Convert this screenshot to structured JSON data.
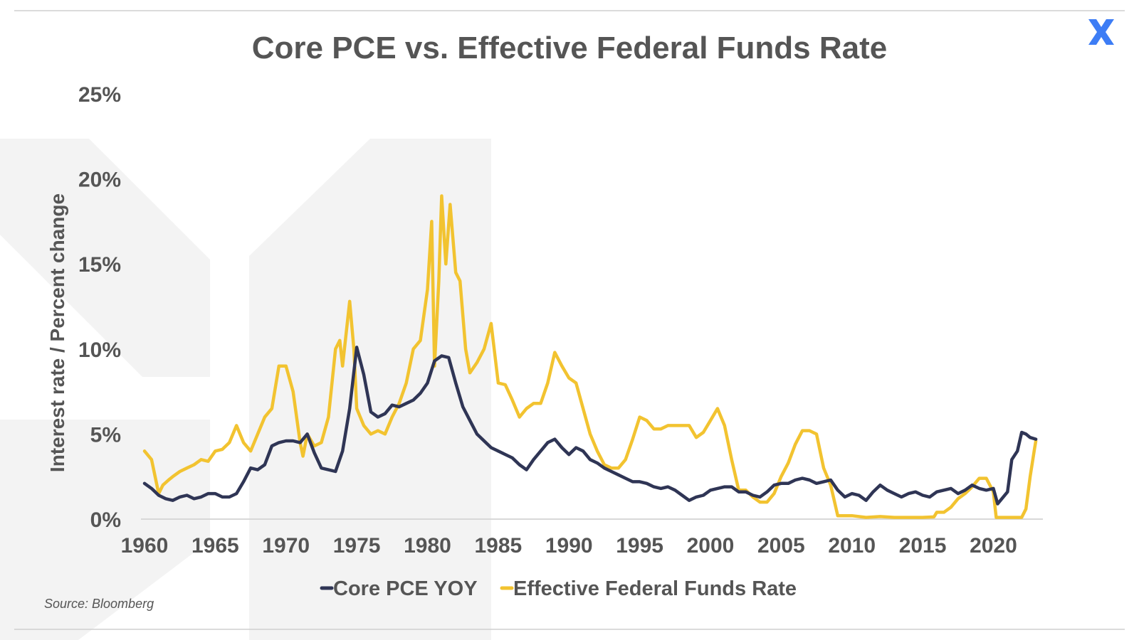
{
  "chart_data": {
    "type": "line",
    "title": "Core PCE vs. Effective Federal Funds Rate",
    "ylabel": "Interest rate / Percent change",
    "xlabel": "",
    "source": "Source: Bloomberg",
    "xlim": [
      1960,
      2023.5
    ],
    "ylim": [
      0,
      25
    ],
    "x_ticks": [
      "1960",
      "1965",
      "1970",
      "1975",
      "1980",
      "1985",
      "1990",
      "1995",
      "2000",
      "2005",
      "2010",
      "2015",
      "2020"
    ],
    "x_tick_values": [
      1960,
      1965,
      1970,
      1975,
      1980,
      1985,
      1990,
      1995,
      2000,
      2005,
      2010,
      2015,
      2020
    ],
    "y_ticks": [
      "0%",
      "5%",
      "10%",
      "15%",
      "20%",
      "25%"
    ],
    "y_tick_values": [
      0,
      5,
      10,
      15,
      20,
      25
    ],
    "grid": false,
    "legend_position": "bottom-center",
    "colors": {
      "title": "#555555",
      "axis_text": "#555555",
      "baseline": "#d8d8d8",
      "rule": "#cfcfcf",
      "watermark": "#f3f3f3",
      "logo": "#3d7df5"
    },
    "logo_icon": "x-logo-icon",
    "series": [
      {
        "name": "Core PCE YOY",
        "color": "#2f3555",
        "points": [
          [
            1960.0,
            2.1
          ],
          [
            1960.5,
            1.8
          ],
          [
            1961.0,
            1.4
          ],
          [
            1961.5,
            1.2
          ],
          [
            1962.0,
            1.1
          ],
          [
            1962.5,
            1.3
          ],
          [
            1963.0,
            1.4
          ],
          [
            1963.5,
            1.2
          ],
          [
            1964.0,
            1.3
          ],
          [
            1964.5,
            1.5
          ],
          [
            1965.0,
            1.5
          ],
          [
            1965.5,
            1.3
          ],
          [
            1966.0,
            1.3
          ],
          [
            1966.5,
            1.5
          ],
          [
            1967.0,
            2.2
          ],
          [
            1967.5,
            3.0
          ],
          [
            1968.0,
            2.9
          ],
          [
            1968.5,
            3.2
          ],
          [
            1969.0,
            4.3
          ],
          [
            1969.5,
            4.5
          ],
          [
            1970.0,
            4.6
          ],
          [
            1970.5,
            4.6
          ],
          [
            1971.0,
            4.5
          ],
          [
            1971.5,
            5.0
          ],
          [
            1972.0,
            3.9
          ],
          [
            1972.5,
            3.0
          ],
          [
            1973.0,
            2.9
          ],
          [
            1973.5,
            2.8
          ],
          [
            1974.0,
            4.0
          ],
          [
            1974.5,
            6.5
          ],
          [
            1975.0,
            10.1
          ],
          [
            1975.5,
            8.5
          ],
          [
            1976.0,
            6.3
          ],
          [
            1976.5,
            6.0
          ],
          [
            1977.0,
            6.2
          ],
          [
            1977.5,
            6.7
          ],
          [
            1978.0,
            6.6
          ],
          [
            1978.5,
            6.8
          ],
          [
            1979.0,
            7.0
          ],
          [
            1979.5,
            7.4
          ],
          [
            1980.0,
            8.0
          ],
          [
            1980.5,
            9.3
          ],
          [
            1981.0,
            9.6
          ],
          [
            1981.5,
            9.5
          ],
          [
            1982.0,
            8.0
          ],
          [
            1982.5,
            6.6
          ],
          [
            1983.0,
            5.8
          ],
          [
            1983.5,
            5.0
          ],
          [
            1984.0,
            4.6
          ],
          [
            1984.5,
            4.2
          ],
          [
            1985.0,
            4.0
          ],
          [
            1985.5,
            3.8
          ],
          [
            1986.0,
            3.6
          ],
          [
            1986.5,
            3.2
          ],
          [
            1987.0,
            2.9
          ],
          [
            1987.5,
            3.5
          ],
          [
            1988.0,
            4.0
          ],
          [
            1988.5,
            4.5
          ],
          [
            1989.0,
            4.7
          ],
          [
            1989.5,
            4.2
          ],
          [
            1990.0,
            3.8
          ],
          [
            1990.5,
            4.2
          ],
          [
            1991.0,
            4.0
          ],
          [
            1991.5,
            3.5
          ],
          [
            1992.0,
            3.3
          ],
          [
            1992.5,
            3.0
          ],
          [
            1993.0,
            2.8
          ],
          [
            1993.5,
            2.6
          ],
          [
            1994.0,
            2.4
          ],
          [
            1994.5,
            2.2
          ],
          [
            1995.0,
            2.2
          ],
          [
            1995.5,
            2.1
          ],
          [
            1996.0,
            1.9
          ],
          [
            1996.5,
            1.8
          ],
          [
            1997.0,
            1.9
          ],
          [
            1997.5,
            1.7
          ],
          [
            1998.0,
            1.4
          ],
          [
            1998.5,
            1.1
          ],
          [
            1999.0,
            1.3
          ],
          [
            1999.5,
            1.4
          ],
          [
            2000.0,
            1.7
          ],
          [
            2000.5,
            1.8
          ],
          [
            2001.0,
            1.9
          ],
          [
            2001.5,
            1.9
          ],
          [
            2002.0,
            1.6
          ],
          [
            2002.5,
            1.6
          ],
          [
            2003.0,
            1.4
          ],
          [
            2003.5,
            1.3
          ],
          [
            2004.0,
            1.6
          ],
          [
            2004.5,
            2.0
          ],
          [
            2005.0,
            2.1
          ],
          [
            2005.5,
            2.1
          ],
          [
            2006.0,
            2.3
          ],
          [
            2006.5,
            2.4
          ],
          [
            2007.0,
            2.3
          ],
          [
            2007.5,
            2.1
          ],
          [
            2008.0,
            2.2
          ],
          [
            2008.5,
            2.3
          ],
          [
            2009.0,
            1.7
          ],
          [
            2009.5,
            1.3
          ],
          [
            2010.0,
            1.5
          ],
          [
            2010.5,
            1.4
          ],
          [
            2011.0,
            1.1
          ],
          [
            2011.5,
            1.6
          ],
          [
            2012.0,
            2.0
          ],
          [
            2012.5,
            1.7
          ],
          [
            2013.0,
            1.5
          ],
          [
            2013.5,
            1.3
          ],
          [
            2014.0,
            1.5
          ],
          [
            2014.5,
            1.6
          ],
          [
            2015.0,
            1.4
          ],
          [
            2015.5,
            1.3
          ],
          [
            2016.0,
            1.6
          ],
          [
            2016.5,
            1.7
          ],
          [
            2017.0,
            1.8
          ],
          [
            2017.5,
            1.5
          ],
          [
            2018.0,
            1.7
          ],
          [
            2018.5,
            2.0
          ],
          [
            2019.0,
            1.8
          ],
          [
            2019.5,
            1.7
          ],
          [
            2020.0,
            1.8
          ],
          [
            2020.3,
            0.9
          ],
          [
            2020.5,
            1.1
          ],
          [
            2021.0,
            1.6
          ],
          [
            2021.3,
            3.5
          ],
          [
            2021.7,
            4.0
          ],
          [
            2022.0,
            5.1
          ],
          [
            2022.3,
            5.0
          ],
          [
            2022.6,
            4.8
          ],
          [
            2023.0,
            4.7
          ]
        ]
      },
      {
        "name": "Effective Federal Funds Rate",
        "color": "#f2c330",
        "points": [
          [
            1960.0,
            4.0
          ],
          [
            1960.5,
            3.5
          ],
          [
            1960.8,
            2.3
          ],
          [
            1961.0,
            1.5
          ],
          [
            1961.3,
            2.0
          ],
          [
            1961.7,
            2.3
          ],
          [
            1962.0,
            2.5
          ],
          [
            1962.5,
            2.8
          ],
          [
            1963.0,
            3.0
          ],
          [
            1963.5,
            3.2
          ],
          [
            1964.0,
            3.5
          ],
          [
            1964.5,
            3.4
          ],
          [
            1965.0,
            4.0
          ],
          [
            1965.5,
            4.1
          ],
          [
            1966.0,
            4.5
          ],
          [
            1966.5,
            5.5
          ],
          [
            1967.0,
            4.5
          ],
          [
            1967.5,
            4.0
          ],
          [
            1968.0,
            5.0
          ],
          [
            1968.5,
            6.0
          ],
          [
            1969.0,
            6.5
          ],
          [
            1969.5,
            9.0
          ],
          [
            1970.0,
            9.0
          ],
          [
            1970.5,
            7.5
          ],
          [
            1971.0,
            4.5
          ],
          [
            1971.2,
            3.7
          ],
          [
            1971.5,
            5.0
          ],
          [
            1972.0,
            4.3
          ],
          [
            1972.5,
            4.5
          ],
          [
            1973.0,
            6.0
          ],
          [
            1973.5,
            10.0
          ],
          [
            1973.8,
            10.5
          ],
          [
            1974.0,
            9.0
          ],
          [
            1974.5,
            12.8
          ],
          [
            1974.8,
            10.0
          ],
          [
            1975.0,
            6.5
          ],
          [
            1975.5,
            5.5
          ],
          [
            1976.0,
            5.0
          ],
          [
            1976.5,
            5.2
          ],
          [
            1977.0,
            5.0
          ],
          [
            1977.5,
            6.0
          ],
          [
            1978.0,
            6.8
          ],
          [
            1978.5,
            8.0
          ],
          [
            1979.0,
            10.0
          ],
          [
            1979.5,
            10.5
          ],
          [
            1980.0,
            13.5
          ],
          [
            1980.3,
            17.5
          ],
          [
            1980.5,
            9.0
          ],
          [
            1980.8,
            14.0
          ],
          [
            1981.0,
            19.0
          ],
          [
            1981.3,
            15.0
          ],
          [
            1981.6,
            18.5
          ],
          [
            1982.0,
            14.5
          ],
          [
            1982.3,
            14.0
          ],
          [
            1982.7,
            10.0
          ],
          [
            1983.0,
            8.6
          ],
          [
            1983.5,
            9.2
          ],
          [
            1984.0,
            10.0
          ],
          [
            1984.5,
            11.5
          ],
          [
            1985.0,
            8.0
          ],
          [
            1985.5,
            7.9
          ],
          [
            1986.0,
            7.0
          ],
          [
            1986.5,
            6.0
          ],
          [
            1987.0,
            6.5
          ],
          [
            1987.5,
            6.8
          ],
          [
            1988.0,
            6.8
          ],
          [
            1988.5,
            8.0
          ],
          [
            1989.0,
            9.8
          ],
          [
            1989.5,
            9.0
          ],
          [
            1990.0,
            8.3
          ],
          [
            1990.5,
            8.0
          ],
          [
            1991.0,
            6.5
          ],
          [
            1991.5,
            5.0
          ],
          [
            1992.0,
            4.0
          ],
          [
            1992.5,
            3.2
          ],
          [
            1993.0,
            3.0
          ],
          [
            1993.5,
            3.0
          ],
          [
            1994.0,
            3.5
          ],
          [
            1994.5,
            4.7
          ],
          [
            1995.0,
            6.0
          ],
          [
            1995.5,
            5.8
          ],
          [
            1996.0,
            5.3
          ],
          [
            1996.5,
            5.3
          ],
          [
            1997.0,
            5.5
          ],
          [
            1997.5,
            5.5
          ],
          [
            1998.0,
            5.5
          ],
          [
            1998.5,
            5.5
          ],
          [
            1999.0,
            4.8
          ],
          [
            1999.5,
            5.1
          ],
          [
            2000.0,
            5.8
          ],
          [
            2000.5,
            6.5
          ],
          [
            2001.0,
            5.5
          ],
          [
            2001.5,
            3.5
          ],
          [
            2002.0,
            1.7
          ],
          [
            2002.5,
            1.7
          ],
          [
            2003.0,
            1.3
          ],
          [
            2003.5,
            1.0
          ],
          [
            2004.0,
            1.0
          ],
          [
            2004.5,
            1.5
          ],
          [
            2005.0,
            2.5
          ],
          [
            2005.5,
            3.3
          ],
          [
            2006.0,
            4.4
          ],
          [
            2006.5,
            5.2
          ],
          [
            2007.0,
            5.2
          ],
          [
            2007.5,
            5.0
          ],
          [
            2008.0,
            3.0
          ],
          [
            2008.5,
            2.0
          ],
          [
            2009.0,
            0.2
          ],
          [
            2009.5,
            0.2
          ],
          [
            2010.0,
            0.2
          ],
          [
            2011.0,
            0.1
          ],
          [
            2012.0,
            0.15
          ],
          [
            2013.0,
            0.1
          ],
          [
            2014.0,
            0.1
          ],
          [
            2015.0,
            0.1
          ],
          [
            2015.8,
            0.13
          ],
          [
            2016.0,
            0.4
          ],
          [
            2016.5,
            0.4
          ],
          [
            2017.0,
            0.7
          ],
          [
            2017.5,
            1.2
          ],
          [
            2018.0,
            1.5
          ],
          [
            2018.5,
            1.9
          ],
          [
            2019.0,
            2.4
          ],
          [
            2019.5,
            2.4
          ],
          [
            2020.0,
            1.6
          ],
          [
            2020.2,
            0.1
          ],
          [
            2020.5,
            0.1
          ],
          [
            2021.0,
            0.1
          ],
          [
            2021.5,
            0.1
          ],
          [
            2022.0,
            0.1
          ],
          [
            2022.3,
            0.6
          ],
          [
            2022.6,
            2.5
          ],
          [
            2022.9,
            4.1
          ],
          [
            2023.0,
            4.6
          ]
        ]
      }
    ]
  }
}
